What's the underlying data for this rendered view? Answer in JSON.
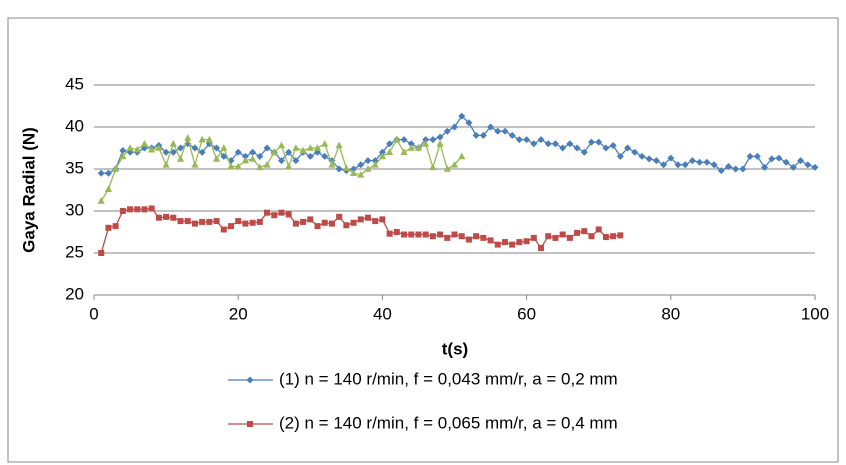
{
  "chart_data": {
    "type": "line",
    "xlabel": "t(s)",
    "ylabel": "Gaya Radial (N)",
    "xlim": [
      0,
      100
    ],
    "xticks": [
      0,
      20,
      40,
      60,
      80,
      100
    ],
    "ylim": [
      20,
      45
    ],
    "yticks": [
      20,
      25,
      30,
      35,
      40,
      45
    ],
    "grid": true,
    "legend": "bottom",
    "series": [
      {
        "name": "(1) n = 140 r/min, f = 0,043 mm/r, a = 0,2 mm",
        "color": "#4a7ebb",
        "marker": "diamond",
        "x": [
          1,
          2,
          3,
          4,
          5,
          6,
          7,
          8,
          9,
          10,
          11,
          12,
          13,
          14,
          15,
          16,
          17,
          18,
          19,
          20,
          21,
          22,
          23,
          24,
          25,
          26,
          27,
          28,
          29,
          30,
          31,
          32,
          33,
          34,
          35,
          36,
          37,
          38,
          39,
          40,
          41,
          42,
          43,
          44,
          45,
          46,
          47,
          48,
          49,
          50,
          51,
          52,
          53,
          54,
          55,
          56,
          57,
          58,
          59,
          60,
          61,
          62,
          63,
          64,
          65,
          66,
          67,
          68,
          69,
          70,
          71,
          72,
          73,
          74,
          75,
          76,
          77,
          78,
          79,
          80,
          81,
          82,
          83,
          84,
          85,
          86,
          87,
          88,
          89,
          90,
          91,
          92,
          93,
          94,
          95,
          96,
          97,
          98,
          99,
          100
        ],
        "values": [
          34.5,
          34.5,
          35,
          37.2,
          37,
          37,
          37.5,
          37.5,
          37.8,
          37,
          37,
          37.5,
          38,
          37.5,
          37,
          38,
          37.5,
          36.5,
          36,
          37,
          36.5,
          37,
          36.5,
          37.5,
          37,
          36,
          37,
          36,
          37,
          36.5,
          37,
          36.5,
          36,
          35,
          34.8,
          35,
          35.5,
          36,
          36,
          37,
          38,
          38.5,
          38.5,
          38,
          37.5,
          38.5,
          38.5,
          38.8,
          39.5,
          40,
          41.3,
          40.5,
          39,
          39,
          40,
          39.5,
          39.5,
          39,
          38.5,
          38.5,
          38,
          38.5,
          38,
          38,
          37.5,
          38,
          37.5,
          37,
          38.2,
          38.2,
          37.5,
          37.8,
          36.5,
          37.5,
          37,
          36.5,
          36.2,
          36,
          35.5,
          36.3,
          35.5,
          35.5,
          36,
          35.8,
          35.8,
          35.5,
          34.8,
          35.3,
          35,
          35,
          36.5,
          36.5,
          35.2,
          36.2,
          36.3,
          35.8,
          35.2,
          36,
          35.5,
          35.2
        ]
      },
      {
        "name": "(2) n = 140 r/min, f = 0,065 mm/r, a = 0,4 mm",
        "color": "#be4b48",
        "marker": "square",
        "x": [
          1,
          2,
          3,
          4,
          5,
          6,
          7,
          8,
          9,
          10,
          11,
          12,
          13,
          14,
          15,
          16,
          17,
          18,
          19,
          20,
          21,
          22,
          23,
          24,
          25,
          26,
          27,
          28,
          29,
          30,
          31,
          32,
          33,
          34,
          35,
          36,
          37,
          38,
          39,
          40,
          41,
          42,
          43,
          44,
          45,
          46,
          47,
          48,
          49,
          50,
          51,
          52,
          53,
          54,
          55,
          56,
          57,
          58,
          59,
          60,
          61,
          62,
          63,
          64,
          65,
          66,
          67,
          68,
          69,
          70,
          71,
          72,
          73
        ],
        "values": [
          25,
          28,
          28.2,
          30,
          30.2,
          30.2,
          30.2,
          30.3,
          29.2,
          29.3,
          29.2,
          28.8,
          28.8,
          28.5,
          28.7,
          28.7,
          28.8,
          27.8,
          28.2,
          28.8,
          28.5,
          28.6,
          28.7,
          29.8,
          29.5,
          29.8,
          29.6,
          28.5,
          28.7,
          29,
          28.2,
          28.6,
          28.5,
          29.3,
          28.3,
          28.6,
          29,
          29.2,
          28.8,
          29,
          27.3,
          27.5,
          27.2,
          27.2,
          27.2,
          27.2,
          27,
          27.2,
          26.8,
          27.2,
          27,
          26.6,
          27,
          26.8,
          26.5,
          26,
          26.3,
          26,
          26.3,
          26.4,
          26.8,
          25.6,
          27,
          26.8,
          27.2,
          26.8,
          27.4,
          27.6,
          27,
          27.8,
          26.9,
          27,
          27.1
        ]
      },
      {
        "color": "#98b954",
        "marker": "triangle",
        "x": [
          1,
          2,
          3,
          4,
          5,
          6,
          7,
          8,
          9,
          10,
          11,
          12,
          13,
          14,
          15,
          16,
          17,
          18,
          19,
          20,
          21,
          22,
          23,
          24,
          25,
          26,
          27,
          28,
          29,
          30,
          31,
          32,
          33,
          34,
          35,
          36,
          37,
          38,
          39,
          40,
          41,
          42,
          43,
          44,
          45,
          46,
          47,
          48,
          49,
          50,
          51
        ],
        "values": [
          31.2,
          32.6,
          35,
          36.5,
          37.5,
          37.3,
          38,
          37.3,
          37.5,
          35.5,
          38,
          36.2,
          38.7,
          35.5,
          38.5,
          38.5,
          36.2,
          37.5,
          35.3,
          35.3,
          36,
          36.2,
          35.2,
          35.5,
          37,
          37.8,
          35.3,
          37.5,
          37.2,
          37.5,
          37.5,
          38,
          35.5,
          37.8,
          35.1,
          34.5,
          34.3,
          35,
          35.5,
          36.5,
          37,
          38.5,
          37,
          37.5,
          37.5,
          38,
          35.2,
          38,
          35,
          35.5,
          36.5
        ]
      }
    ]
  }
}
